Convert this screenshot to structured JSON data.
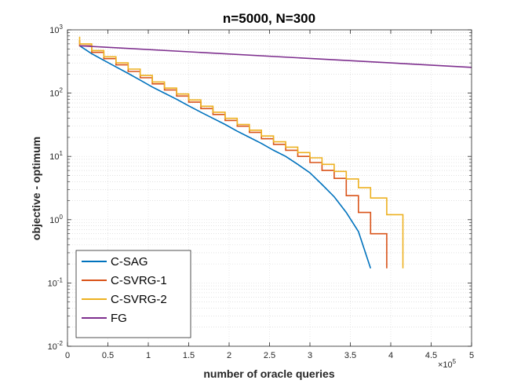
{
  "chart_data": {
    "type": "line",
    "title": "n=5000, N=300",
    "xlabel": "number of oracle queries",
    "ylabel": "objective - optimum",
    "x_exponent_label": "×10",
    "x_exponent_power": "5",
    "xlim": [
      0,
      500000
    ],
    "ylim": [
      0.01,
      1000
    ],
    "yscale": "log",
    "grid": true,
    "minor_grid": true,
    "legend_position": "bottom-left",
    "x_ticks": [
      {
        "value": 0,
        "label": "0"
      },
      {
        "value": 50000,
        "label": "0.5"
      },
      {
        "value": 100000,
        "label": "1"
      },
      {
        "value": 150000,
        "label": "1.5"
      },
      {
        "value": 200000,
        "label": "2"
      },
      {
        "value": 250000,
        "label": "2.5"
      },
      {
        "value": 300000,
        "label": "3"
      },
      {
        "value": 350000,
        "label": "3.5"
      },
      {
        "value": 400000,
        "label": "4"
      },
      {
        "value": 450000,
        "label": "4.5"
      },
      {
        "value": 500000,
        "label": "5"
      }
    ],
    "y_ticks": [
      {
        "value": 0.01,
        "base": "10",
        "exp": "-2"
      },
      {
        "value": 0.1,
        "base": "10",
        "exp": "-1"
      },
      {
        "value": 1,
        "base": "10",
        "exp": "0"
      },
      {
        "value": 10,
        "base": "10",
        "exp": "1"
      },
      {
        "value": 100,
        "base": "10",
        "exp": "2"
      },
      {
        "value": 1000,
        "base": "10",
        "exp": "3"
      }
    ],
    "series": [
      {
        "name": "C-SAG",
        "color": "#0072BD",
        "x": [
          15000,
          15000,
          30000,
          30000,
          45000,
          45000,
          60000,
          60000,
          75000,
          75000,
          90000,
          90000,
          105000,
          105000,
          120000,
          120000,
          135000,
          135000,
          150000,
          150000,
          165000,
          165000,
          180000,
          180000,
          195000,
          195000,
          210000,
          210000,
          225000,
          225000,
          240000,
          240000,
          255000,
          255000,
          270000,
          270000,
          285000,
          285000,
          300000,
          300000,
          315000,
          315000,
          330000,
          330000,
          345000,
          345000,
          360000,
          360000,
          375000,
          375000
        ],
        "y": [
          560,
          560,
          420,
          420,
          330,
          330,
          260,
          260,
          205,
          205,
          160,
          160,
          125,
          125,
          100,
          100,
          80,
          80,
          63,
          63,
          50,
          50,
          40,
          40,
          32,
          32,
          25,
          25,
          20,
          20,
          16,
          16,
          12.5,
          12.5,
          10,
          10,
          7.5,
          7.5,
          5.5,
          5.5,
          3.6,
          3.6,
          2.3,
          2.3,
          1.3,
          1.3,
          0.65,
          0.65,
          0.17,
          0.17
        ]
      },
      {
        "name": "C-SVRG-1",
        "color": "#D95319",
        "x": [
          15000,
          15000,
          30000,
          30000,
          45000,
          45000,
          60000,
          60000,
          75000,
          75000,
          90000,
          90000,
          105000,
          105000,
          120000,
          120000,
          135000,
          135000,
          150000,
          150000,
          165000,
          165000,
          180000,
          180000,
          195000,
          195000,
          210000,
          210000,
          225000,
          225000,
          240000,
          240000,
          255000,
          255000,
          270000,
          270000,
          285000,
          285000,
          300000,
          300000,
          315000,
          315000,
          330000,
          330000,
          345000,
          345000,
          360000,
          360000,
          375000,
          375000,
          395000,
          395000
        ],
        "y": [
          690,
          560,
          560,
          440,
          440,
          350,
          350,
          280,
          280,
          220,
          220,
          175,
          175,
          140,
          140,
          112,
          112,
          90,
          90,
          72,
          72,
          57,
          57,
          46,
          46,
          37,
          37,
          30,
          30,
          24,
          24,
          19,
          19,
          15.5,
          15.5,
          12.5,
          12.5,
          10,
          10,
          8,
          8,
          6,
          6,
          4.5,
          4.5,
          2.4,
          2.4,
          1.3,
          1.3,
          0.6,
          0.6,
          0.17
        ]
      },
      {
        "name": "C-SVRG-2",
        "color": "#EDB120",
        "x": [
          15000,
          15000,
          30000,
          30000,
          45000,
          45000,
          60000,
          60000,
          75000,
          75000,
          90000,
          90000,
          105000,
          105000,
          120000,
          120000,
          135000,
          135000,
          150000,
          150000,
          165000,
          165000,
          180000,
          180000,
          195000,
          195000,
          210000,
          210000,
          225000,
          225000,
          240000,
          240000,
          255000,
          255000,
          270000,
          270000,
          285000,
          285000,
          300000,
          300000,
          315000,
          315000,
          330000,
          330000,
          345000,
          345000,
          360000,
          360000,
          375000,
          375000,
          395000,
          395000,
          415000,
          415000
        ],
        "y": [
          780,
          600,
          600,
          470,
          470,
          375,
          375,
          300,
          300,
          240,
          240,
          190,
          190,
          150,
          150,
          120,
          120,
          97,
          97,
          78,
          78,
          62,
          62,
          50,
          50,
          40,
          40,
          32,
          32,
          26,
          26,
          21,
          21,
          17,
          17,
          14,
          14,
          11.5,
          11.5,
          9.5,
          9.5,
          7.5,
          7.5,
          5.8,
          5.8,
          4.4,
          4.4,
          3.2,
          3.2,
          2.2,
          2.2,
          1.2,
          1.2,
          0.17
        ]
      },
      {
        "name": "FG",
        "color": "#7E2F8E",
        "x": [
          15000,
          500000
        ],
        "y": [
          560,
          255
        ]
      }
    ]
  }
}
